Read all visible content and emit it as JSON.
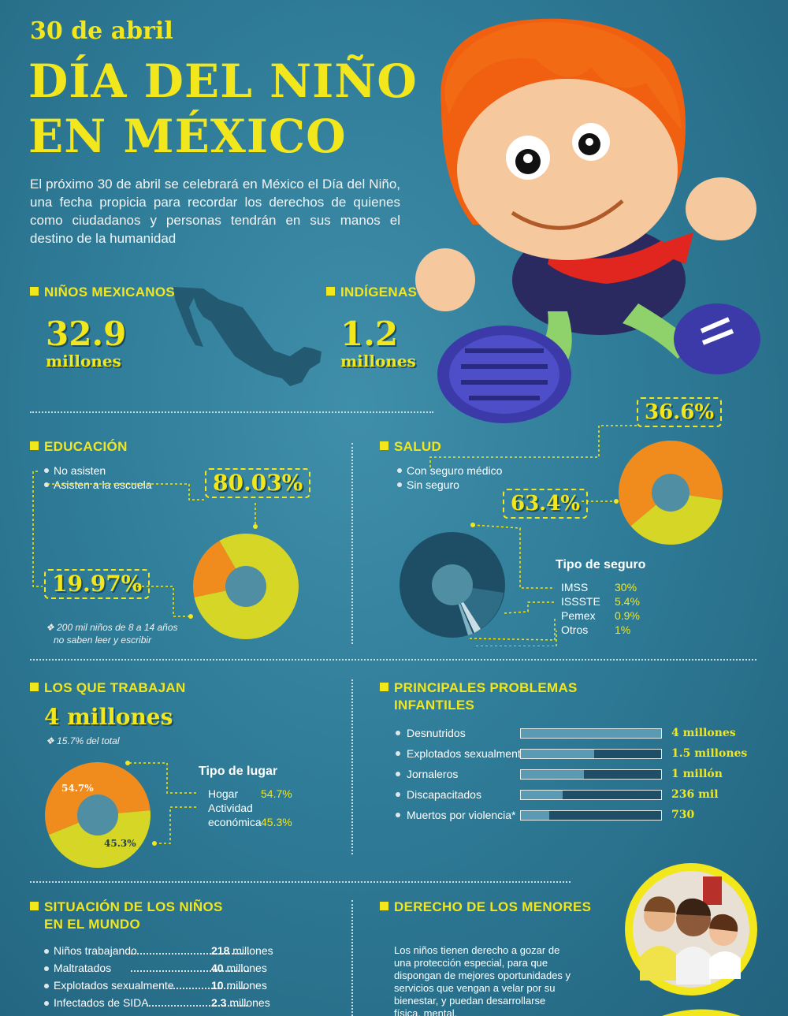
{
  "header": {
    "date": "30 de abril",
    "title_line1": "DÍA DEL NIÑO",
    "title_line2": "EN MÉXICO",
    "intro": "El próximo 30 de abril se celebrará en México el Día del Niño, una fecha propicia para recordar los derechos de quienes como ciudadanos y personas tendrán en sus manos el destino de la humanidad"
  },
  "ninos_mexicanos": {
    "heading": "NIÑOS MEXICANOS",
    "value": "32.9",
    "unit": "millones"
  },
  "indigenas": {
    "heading": "INDÍGENAS",
    "value": "1.2",
    "unit": "millones"
  },
  "educacion": {
    "heading": "EDUCACIÓN",
    "legend": [
      "No asisten",
      "Asisten a la escuela"
    ],
    "pct_attend": "80.03%",
    "pct_not": "19.97%",
    "attend_fraction": 0.8003,
    "note_line1": "❖ 200 mil niños  de 8 a 14 años",
    "note_line2": "no saben leer y escribir",
    "colors": {
      "attend": "#d6d626",
      "not": "#f08c1e"
    }
  },
  "salud": {
    "heading": "SALUD",
    "legend": [
      "Con seguro médico",
      "Sin seguro"
    ],
    "pct_sin": "36.6%",
    "pct_con": "63.4%",
    "con_fraction": 0.634,
    "tipo_title": "Tipo de seguro",
    "tipos": [
      {
        "name": "IMSS",
        "value": "30%"
      },
      {
        "name": "ISSSTE",
        "value": "5.4%"
      },
      {
        "name": "Pemex",
        "value": "0.9%"
      },
      {
        "name": "Otros",
        "value": "1%"
      }
    ],
    "colors": {
      "con": "#f08c1e",
      "sin": "#d6d626"
    }
  },
  "trabajan": {
    "heading": "LOS QUE TRABAJAN",
    "value": "4 millones",
    "note": "❖ 15.7% del total",
    "tipo_title": "Tipo de lugar",
    "places": [
      {
        "name": "Hogar",
        "value": "54.7%"
      },
      {
        "name": "Actividad económica",
        "value": "45.3%"
      }
    ],
    "pie_labels": [
      "54.7%",
      "45.3%"
    ],
    "hogar_fraction": 0.547
  },
  "problemas": {
    "heading_line1": "PRINCIPALES PROBLEMAS",
    "heading_line2": "INFANTILES",
    "items": [
      {
        "name": "Desnutridos",
        "value": "4 millones",
        "level": 1.0
      },
      {
        "name": "Explotados sexualmente",
        "value": "1.5 millones",
        "level": 0.52
      },
      {
        "name": "Jornaleros",
        "value": "1 millón",
        "level": 0.45
      },
      {
        "name": "Discapacitados",
        "value": "236 mil",
        "level": 0.3
      },
      {
        "name": "Muertos por violencia*",
        "value": "730",
        "level": 0.2
      }
    ]
  },
  "mundo": {
    "heading_line1": "SITUACIÓN DE LOS NIÑOS",
    "heading_line2": "EN EL MUNDO",
    "items": [
      {
        "name": "Niños trabajando",
        "num": "218",
        "unit": " millones"
      },
      {
        "name": "Maltratados",
        "num": "40",
        "unit": " millones"
      },
      {
        "name": "Explotados sexualmente",
        "num": "10",
        "unit": " millones"
      },
      {
        "name": "Infectados de SIDA",
        "num": "2.3",
        "unit": " millones"
      }
    ]
  },
  "derecho": {
    "heading": "DERECHO DE LOS MENORES",
    "text": "Los niños tienen derecho a gozar de una protección especial, para que dispongan de mejores oportunidades y servicios que vengan a velar por su bienestar, y puedan desarrollarse física, mental,"
  }
}
